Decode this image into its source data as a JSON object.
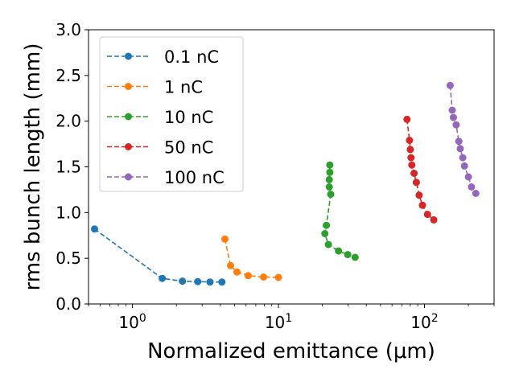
{
  "chart_data": {
    "type": "line",
    "xscale": "log",
    "xlim": [
      0.5,
      300
    ],
    "ylim": [
      0.0,
      3.0
    ],
    "xlabel": "Normalized emittance (μm)",
    "ylabel": "rms bunch length (mm)",
    "xticks": [
      {
        "value": 1,
        "base": "10",
        "exp": "0"
      },
      {
        "value": 10,
        "base": "10",
        "exp": "1"
      },
      {
        "value": 100,
        "base": "10",
        "exp": "2"
      }
    ],
    "yticks": [
      "0.0",
      "0.5",
      "1.0",
      "1.5",
      "2.0",
      "2.5",
      "3.0"
    ],
    "legend_position": "top-left",
    "series": [
      {
        "name": "0.1 nC",
        "color": "#1f77b4",
        "x": [
          0.55,
          1.6,
          2.2,
          2.8,
          3.4,
          4.1
        ],
        "y": [
          0.82,
          0.28,
          0.25,
          0.245,
          0.24,
          0.24
        ]
      },
      {
        "name": "1 nC",
        "color": "#ff7f0e",
        "x": [
          4.3,
          4.7,
          5.2,
          6.2,
          7.9,
          10.0
        ],
        "y": [
          0.71,
          0.42,
          0.35,
          0.31,
          0.295,
          0.29
        ]
      },
      {
        "name": "10 nC",
        "color": "#2ca02c",
        "x": [
          22.5,
          22.5,
          22.3,
          22.3,
          22.8,
          21.3,
          20.8,
          22.0,
          25.8,
          29.8,
          33.5
        ],
        "y": [
          1.52,
          1.44,
          1.36,
          1.28,
          1.2,
          0.86,
          0.77,
          0.65,
          0.58,
          0.54,
          0.51
        ]
      },
      {
        "name": "50 nC",
        "color": "#d62728",
        "x": [
          76,
          79,
          80,
          81,
          82,
          85,
          88,
          92,
          97,
          105,
          116
        ],
        "y": [
          2.02,
          1.79,
          1.69,
          1.6,
          1.52,
          1.43,
          1.33,
          1.19,
          1.08,
          0.98,
          0.92
        ]
      },
      {
        "name": "100 nC",
        "color": "#9467bd",
        "x": [
          150,
          155,
          158,
          165,
          172,
          176,
          183,
          188,
          200,
          210,
          225
        ],
        "y": [
          2.39,
          2.12,
          2.04,
          1.96,
          1.78,
          1.7,
          1.6,
          1.51,
          1.39,
          1.28,
          1.21
        ]
      }
    ]
  }
}
